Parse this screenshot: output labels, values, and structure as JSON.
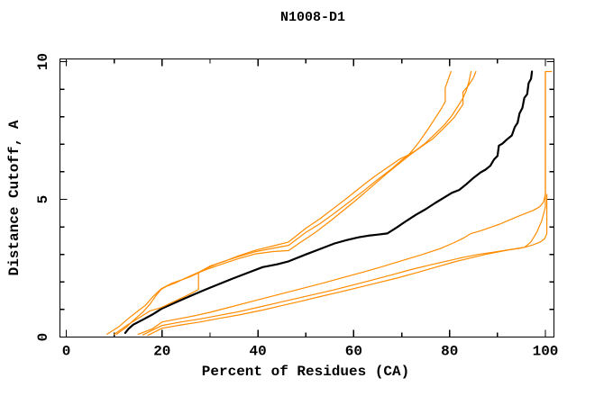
{
  "chart_data": {
    "type": "line",
    "title": "N1008-D1",
    "xlabel": "Percent of Residues (CA)",
    "ylabel": "Distance Cutoff, A",
    "xlim": [
      0,
      102
    ],
    "ylim": [
      0,
      10.1
    ],
    "grid": false,
    "legend": "none",
    "x_major_ticks": [
      0,
      20,
      40,
      60,
      80,
      100
    ],
    "x_minor_ticks": [
      10,
      30,
      50,
      70,
      90
    ],
    "y_major_ticks": [
      0,
      5,
      10
    ],
    "y_minor_ticks": [
      1,
      2,
      3,
      4,
      6,
      7,
      8,
      9
    ],
    "colors": {
      "highlighted_model": "#000000",
      "other_models": "#ff8c00",
      "frame": "#000000",
      "background": "#ffffff"
    },
    "series": [
      {
        "name": "highlighted-model",
        "color": "#000000",
        "role": "highlight",
        "points": [
          [
            12.3,
            0.15
          ],
          [
            13,
            0.3
          ],
          [
            14,
            0.45
          ],
          [
            16,
            0.63
          ],
          [
            18,
            0.82
          ],
          [
            20,
            1.04
          ],
          [
            23,
            1.27
          ],
          [
            26,
            1.5
          ],
          [
            29,
            1.72
          ],
          [
            32,
            1.93
          ],
          [
            35,
            2.14
          ],
          [
            38,
            2.34
          ],
          [
            41,
            2.54
          ],
          [
            44,
            2.64
          ],
          [
            46.4,
            2.75
          ],
          [
            50,
            3.0
          ],
          [
            53,
            3.2
          ],
          [
            56,
            3.4
          ],
          [
            58.5,
            3.52
          ],
          [
            61,
            3.62
          ],
          [
            63,
            3.68
          ],
          [
            65,
            3.72
          ],
          [
            67,
            3.76
          ],
          [
            69,
            3.98
          ],
          [
            71,
            4.22
          ],
          [
            73,
            4.44
          ],
          [
            75,
            4.64
          ],
          [
            77,
            4.87
          ],
          [
            79,
            5.08
          ],
          [
            80.5,
            5.24
          ],
          [
            82,
            5.34
          ],
          [
            83.5,
            5.55
          ],
          [
            85,
            5.78
          ],
          [
            86.5,
            5.98
          ],
          [
            87.5,
            6.08
          ],
          [
            88.5,
            6.22
          ],
          [
            89.3,
            6.45
          ],
          [
            90,
            6.58
          ],
          [
            90.3,
            6.95
          ],
          [
            91,
            7.02
          ],
          [
            92,
            7.18
          ],
          [
            93,
            7.32
          ],
          [
            93.6,
            7.62
          ],
          [
            94.2,
            7.78
          ],
          [
            94.6,
            8.12
          ],
          [
            95.2,
            8.32
          ],
          [
            95.6,
            8.68
          ],
          [
            96.2,
            8.82
          ],
          [
            96.5,
            9.22
          ],
          [
            97,
            9.38
          ],
          [
            97.2,
            9.64
          ]
        ]
      },
      {
        "name": "other-model-1",
        "color": "#ff8c00",
        "role": "other",
        "points": [
          [
            8.5,
            0.1
          ],
          [
            11,
            0.38
          ],
          [
            13,
            0.68
          ],
          [
            15,
            0.95
          ],
          [
            16.5,
            1.15
          ],
          [
            18,
            1.45
          ],
          [
            19.8,
            1.75
          ],
          [
            22,
            1.95
          ],
          [
            24.5,
            2.1
          ],
          [
            26,
            2.2
          ],
          [
            27.6,
            2.33
          ],
          [
            30,
            2.55
          ],
          [
            32,
            2.7
          ],
          [
            36,
            2.92
          ],
          [
            39.5,
            3.1
          ],
          [
            43,
            3.22
          ],
          [
            46.4,
            3.33
          ],
          [
            50,
            3.8
          ],
          [
            53,
            4.12
          ],
          [
            56,
            4.5
          ],
          [
            59,
            4.9
          ],
          [
            62,
            5.3
          ],
          [
            65,
            5.72
          ],
          [
            68,
            6.12
          ],
          [
            70,
            6.42
          ],
          [
            71.5,
            6.62
          ],
          [
            73.5,
            7.05
          ],
          [
            75.5,
            7.55
          ],
          [
            77,
            7.95
          ],
          [
            78.3,
            8.3
          ],
          [
            79.1,
            8.55
          ],
          [
            79.1,
            9.05
          ],
          [
            79.6,
            9.3
          ],
          [
            80.3,
            9.64
          ]
        ]
      },
      {
        "name": "other-model-2",
        "color": "#ff8c00",
        "role": "other",
        "points": [
          [
            10,
            0.1
          ],
          [
            12.6,
            0.42
          ],
          [
            15,
            0.68
          ],
          [
            17.5,
            0.95
          ],
          [
            19.8,
            1.07
          ],
          [
            22,
            1.25
          ],
          [
            24.5,
            1.45
          ],
          [
            26,
            1.58
          ],
          [
            27.6,
            1.73
          ],
          [
            27.6,
            2.34
          ],
          [
            30,
            2.5
          ],
          [
            32,
            2.62
          ],
          [
            36,
            2.85
          ],
          [
            39.5,
            3.02
          ],
          [
            43,
            3.1
          ],
          [
            46.4,
            3.14
          ],
          [
            49,
            3.45
          ],
          [
            52,
            3.8
          ],
          [
            55,
            4.2
          ],
          [
            58,
            4.62
          ],
          [
            61,
            5.05
          ],
          [
            64,
            5.5
          ],
          [
            67,
            5.95
          ],
          [
            69.5,
            6.3
          ],
          [
            71.8,
            6.62
          ],
          [
            74,
            6.9
          ],
          [
            76.5,
            7.2
          ],
          [
            79,
            7.62
          ],
          [
            81,
            7.98
          ],
          [
            82.8,
            8.45
          ],
          [
            82.8,
            8.9
          ],
          [
            84,
            9.15
          ],
          [
            85,
            9.42
          ],
          [
            85.5,
            9.64
          ]
        ]
      },
      {
        "name": "other-model-3",
        "color": "#ff8c00",
        "role": "other",
        "points": [
          [
            10.5,
            0.1
          ],
          [
            12.5,
            0.35
          ],
          [
            14,
            0.6
          ],
          [
            16,
            0.91
          ],
          [
            17.5,
            1.2
          ],
          [
            18.7,
            1.5
          ],
          [
            19.8,
            1.73
          ],
          [
            21,
            1.85
          ],
          [
            22.6,
            1.95
          ],
          [
            25,
            2.15
          ],
          [
            27.6,
            2.35
          ],
          [
            30,
            2.58
          ],
          [
            33,
            2.75
          ],
          [
            36,
            2.95
          ],
          [
            39.5,
            3.15
          ],
          [
            43,
            3.3
          ],
          [
            46.4,
            3.45
          ],
          [
            50,
            3.95
          ],
          [
            53,
            4.3
          ],
          [
            56,
            4.7
          ],
          [
            59,
            5.1
          ],
          [
            62,
            5.52
          ],
          [
            64.5,
            5.85
          ],
          [
            67,
            6.15
          ],
          [
            69.5,
            6.45
          ],
          [
            71.5,
            6.62
          ],
          [
            73,
            6.78
          ],
          [
            75,
            7.05
          ],
          [
            77,
            7.38
          ],
          [
            79,
            7.72
          ],
          [
            80.5,
            8.05
          ],
          [
            81.8,
            8.4
          ],
          [
            82.8,
            8.68
          ],
          [
            83.5,
            8.95
          ],
          [
            84,
            9.25
          ],
          [
            84.5,
            9.64
          ]
        ]
      },
      {
        "name": "other-model-4",
        "color": "#ff8c00",
        "role": "other",
        "points": [
          [
            15,
            0.1
          ],
          [
            18,
            0.3
          ],
          [
            20,
            0.55
          ],
          [
            24,
            0.68
          ],
          [
            27,
            0.78
          ],
          [
            30,
            0.9
          ],
          [
            34,
            1.08
          ],
          [
            38,
            1.26
          ],
          [
            42,
            1.44
          ],
          [
            46,
            1.62
          ],
          [
            50,
            1.8
          ],
          [
            54,
            1.98
          ],
          [
            58,
            2.17
          ],
          [
            62,
            2.36
          ],
          [
            66,
            2.56
          ],
          [
            70,
            2.77
          ],
          [
            74,
            2.98
          ],
          [
            78,
            3.21
          ],
          [
            81,
            3.43
          ],
          [
            83,
            3.6
          ],
          [
            84.5,
            3.76
          ],
          [
            86.5,
            3.86
          ],
          [
            88.5,
            3.98
          ],
          [
            90.5,
            4.1
          ],
          [
            92.5,
            4.25
          ],
          [
            94.5,
            4.4
          ],
          [
            96,
            4.5
          ],
          [
            97.5,
            4.6
          ],
          [
            98.8,
            4.73
          ],
          [
            99.6,
            4.9
          ],
          [
            100,
            5.18
          ],
          [
            100,
            9.64
          ],
          [
            101.3,
            9.64
          ]
        ]
      },
      {
        "name": "other-model-5",
        "color": "#ff8c00",
        "role": "other",
        "points": [
          [
            16,
            0.08
          ],
          [
            20,
            0.42
          ],
          [
            24,
            0.55
          ],
          [
            28,
            0.66
          ],
          [
            32,
            0.79
          ],
          [
            36,
            0.92
          ],
          [
            40,
            1.08
          ],
          [
            44,
            1.24
          ],
          [
            48,
            1.4
          ],
          [
            52,
            1.56
          ],
          [
            56,
            1.72
          ],
          [
            60,
            1.9
          ],
          [
            64,
            2.08
          ],
          [
            68,
            2.26
          ],
          [
            72,
            2.45
          ],
          [
            76,
            2.62
          ],
          [
            80,
            2.78
          ],
          [
            83,
            2.9
          ],
          [
            86,
            3.0
          ],
          [
            89,
            3.08
          ],
          [
            92,
            3.16
          ],
          [
            94.5,
            3.22
          ],
          [
            95.7,
            3.26
          ],
          [
            97,
            3.46
          ],
          [
            98.2,
            3.8
          ],
          [
            99.2,
            4.2
          ],
          [
            100,
            4.72
          ],
          [
            100,
            9.6
          ]
        ]
      },
      {
        "name": "other-model-6",
        "color": "#ff8c00",
        "role": "other",
        "points": [
          [
            17,
            0.06
          ],
          [
            20,
            0.32
          ],
          [
            24,
            0.44
          ],
          [
            28,
            0.55
          ],
          [
            32,
            0.68
          ],
          [
            36,
            0.8
          ],
          [
            41,
            0.98
          ],
          [
            45,
            1.14
          ],
          [
            49,
            1.3
          ],
          [
            53,
            1.47
          ],
          [
            57,
            1.63
          ],
          [
            61,
            1.8
          ],
          [
            65,
            1.97
          ],
          [
            69,
            2.14
          ],
          [
            73,
            2.33
          ],
          [
            77,
            2.53
          ],
          [
            81,
            2.73
          ],
          [
            85,
            2.9
          ],
          [
            88,
            3.02
          ],
          [
            91,
            3.12
          ],
          [
            93.5,
            3.2
          ],
          [
            95.7,
            3.26
          ],
          [
            97.3,
            3.34
          ],
          [
            98.8,
            3.44
          ],
          [
            99.8,
            3.56
          ],
          [
            100.3,
            3.75
          ],
          [
            100.3,
            5.18
          ]
        ]
      }
    ]
  }
}
